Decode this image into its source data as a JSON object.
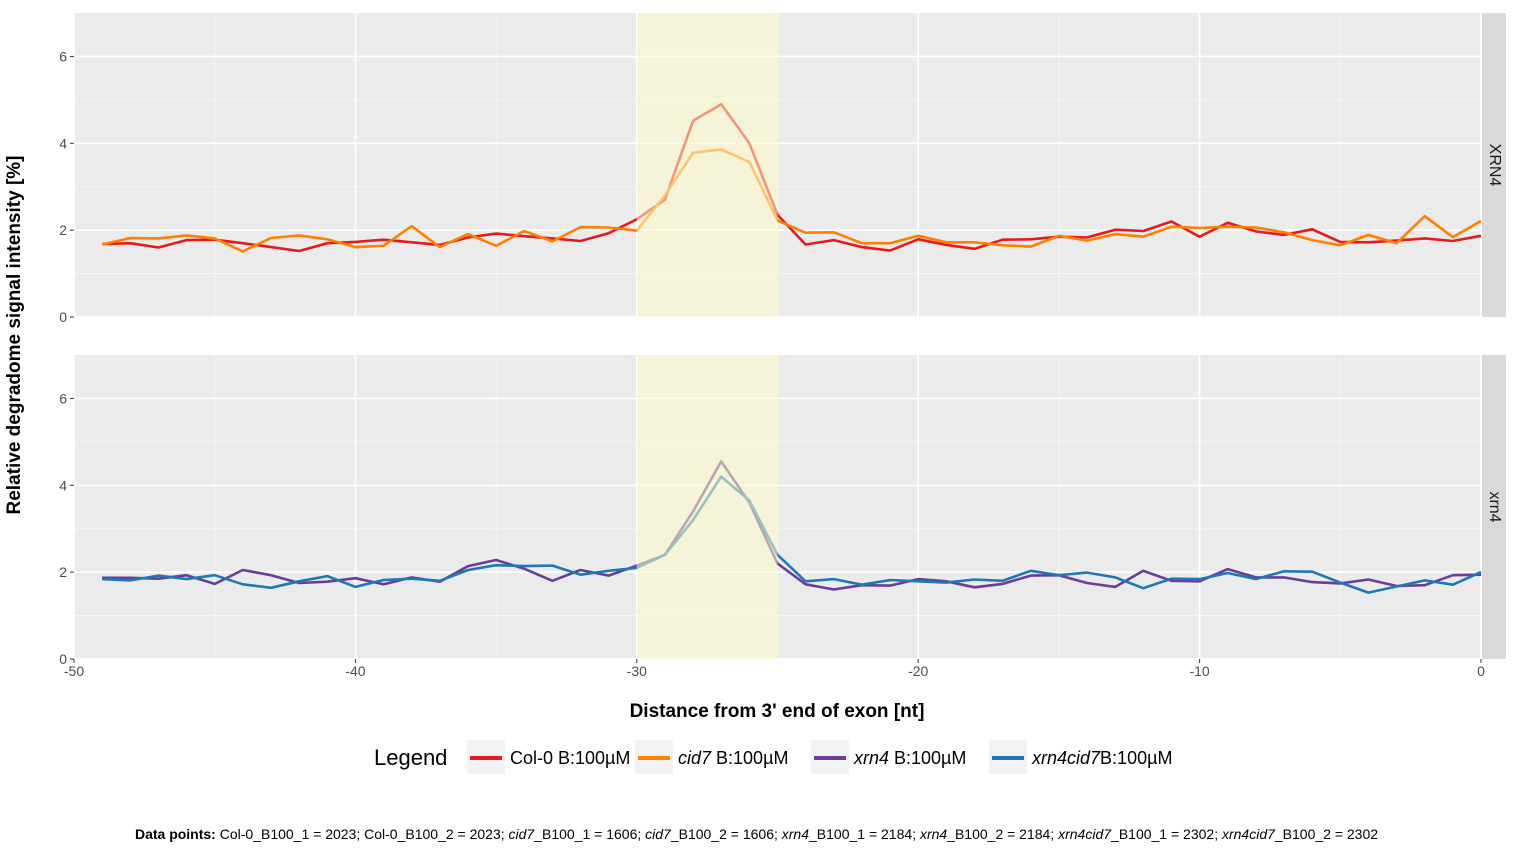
{
  "chart_data": {
    "type": "line",
    "xlabel": "Distance from 3' end of exon [nt]",
    "ylabel": "Relative degradome signal intensity [%]",
    "xlim": [
      -50,
      0
    ],
    "ylim": [
      0,
      7
    ],
    "x_ticks": [
      -50,
      -40,
      -30,
      -20,
      -10,
      0
    ],
    "y_ticks": [
      0,
      2,
      4,
      6
    ],
    "grid": true,
    "highlight_region": [
      -30,
      -25
    ],
    "legend_position": "bottom",
    "legend_title": "Legend",
    "x": [
      -49,
      -48,
      -47,
      -46,
      -45,
      -44,
      -43,
      -42,
      -41,
      -40,
      -39,
      -38,
      -37,
      -36,
      -35,
      -34,
      -33,
      -32,
      -31,
      -30,
      -29,
      -28,
      -27,
      -26,
      -25,
      -24,
      -23,
      -22,
      -21,
      -20,
      -19,
      -18,
      -17,
      -16,
      -15,
      -14,
      -13,
      -12,
      -11,
      -10,
      -9,
      -8,
      -7,
      -6,
      -5,
      -4,
      -3,
      -2,
      -1,
      0
    ],
    "panels": [
      {
        "strip_label": "XRN4",
        "series": [
          {
            "name": "Col-0 B:100µM",
            "color": "#e41a1c",
            "values": [
              1.68,
              1.7,
              1.6,
              1.77,
              1.78,
              1.7,
              1.61,
              1.52,
              1.7,
              1.73,
              1.78,
              1.72,
              1.66,
              1.83,
              1.92,
              1.86,
              1.81,
              1.75,
              1.93,
              2.25,
              2.7,
              4.52,
              4.9,
              4.0,
              2.35,
              1.67,
              1.77,
              1.61,
              1.53,
              1.79,
              1.66,
              1.57,
              1.78,
              1.79,
              1.85,
              1.83,
              2.01,
              1.98,
              2.2,
              1.85,
              2.17,
              1.97,
              1.89,
              2.02,
              1.73,
              1.72,
              1.76,
              1.81,
              1.75,
              1.87
            ]
          },
          {
            "name": "cid7 B:100µM",
            "color": "#ff7f00",
            "values": [
              1.67,
              1.82,
              1.81,
              1.88,
              1.81,
              1.51,
              1.82,
              1.88,
              1.79,
              1.61,
              1.64,
              2.09,
              1.61,
              1.91,
              1.64,
              1.98,
              1.74,
              2.07,
              2.06,
              1.99,
              2.8,
              3.78,
              3.86,
              3.57,
              2.22,
              1.94,
              1.95,
              1.7,
              1.7,
              1.87,
              1.72,
              1.72,
              1.65,
              1.62,
              1.87,
              1.76,
              1.91,
              1.85,
              2.08,
              2.05,
              2.08,
              2.06,
              1.95,
              1.77,
              1.65,
              1.89,
              1.7,
              2.32,
              1.84,
              2.21
            ]
          }
        ]
      },
      {
        "strip_label": "xrn4",
        "series": [
          {
            "name": "xrn4 B:100µM",
            "color": "#6a3d9a",
            "values": [
              1.87,
              1.87,
              1.85,
              1.93,
              1.73,
              2.05,
              1.93,
              1.75,
              1.78,
              1.86,
              1.72,
              1.88,
              1.78,
              2.14,
              2.28,
              2.08,
              1.8,
              2.05,
              1.92,
              2.15,
              2.4,
              3.4,
              4.55,
              3.6,
              2.2,
              1.72,
              1.6,
              1.7,
              1.69,
              1.84,
              1.79,
              1.65,
              1.73,
              1.92,
              1.93,
              1.75,
              1.66,
              2.03,
              1.8,
              1.79,
              2.07,
              1.88,
              1.88,
              1.77,
              1.74,
              1.83,
              1.68,
              1.7,
              1.93,
              1.94
            ]
          },
          {
            "name": "xrn4cid7B:100µM",
            "color": "#1f78b4",
            "values": [
              1.84,
              1.81,
              1.92,
              1.84,
              1.93,
              1.72,
              1.64,
              1.79,
              1.91,
              1.66,
              1.82,
              1.85,
              1.8,
              2.05,
              2.16,
              2.14,
              2.15,
              1.94,
              2.03,
              2.1,
              2.4,
              3.2,
              4.2,
              3.65,
              2.4,
              1.79,
              1.84,
              1.71,
              1.82,
              1.79,
              1.76,
              1.83,
              1.8,
              2.03,
              1.93,
              1.99,
              1.88,
              1.63,
              1.85,
              1.84,
              1.98,
              1.84,
              2.02,
              2.01,
              1.76,
              1.53,
              1.67,
              1.81,
              1.71,
              2.0
            ]
          }
        ]
      }
    ]
  },
  "legend": {
    "items": [
      {
        "italic": "",
        "text": "Col-0 B:100µM"
      },
      {
        "italic": "cid7",
        "text": " B:100µM"
      },
      {
        "italic": "xrn4",
        "text": " B:100µM"
      },
      {
        "italic": "xrn4cid7",
        "text": "B:100µM"
      }
    ]
  },
  "footnote": {
    "label": "Data points:",
    "entries": [
      {
        "italic": "",
        "text": "Col-0_B100_1 = 2023"
      },
      {
        "italic": "",
        "text": "Col-0_B100_2 = 2023"
      },
      {
        "italic": "cid7",
        "text": "_B100_1 = 1606"
      },
      {
        "italic": "cid7",
        "text": "_B100_2 = 1606"
      },
      {
        "italic": "xrn4",
        "text": "_B100_1 = 2184"
      },
      {
        "italic": "xrn4",
        "text": "_B100_2 = 2184"
      },
      {
        "italic": "xrn4cid7",
        "text": "_B100_1 = 2302"
      },
      {
        "italic": "xrn4cid7",
        "text": "_B100_2 = 2302"
      }
    ]
  }
}
